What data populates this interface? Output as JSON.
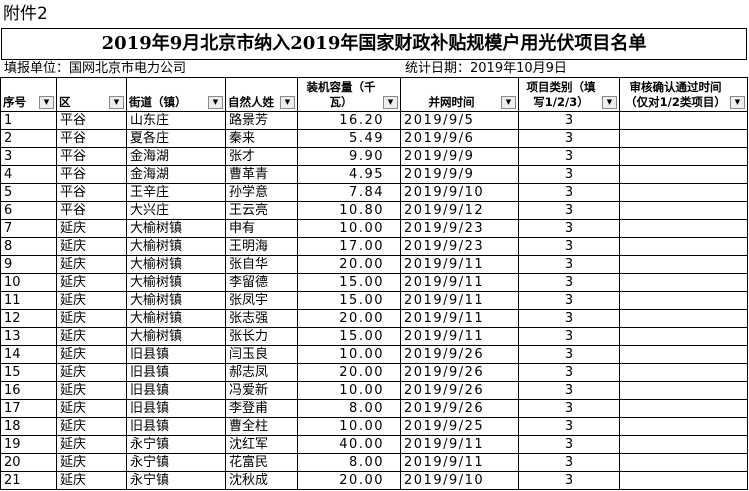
{
  "header": {
    "attachment": "附件2",
    "title": "2019年9月北京市纳入2019年国家财政补贴规模户用光伏项目名单",
    "unit": "填报单位：国网北京市电力公司",
    "date": "统计日期：2019年10月9日"
  },
  "table": {
    "columns": [
      "序号",
      "区",
      "街道（镇）",
      "自然人姓",
      "装机容量（千瓦）",
      "并网时间",
      "项目类别（填写1/2/3）",
      "审核确认通过时间（仅对1/2类项目）"
    ],
    "rows": [
      [
        1,
        "平谷",
        "山东庄",
        "路景芳",
        "16.20",
        "2019/9/5",
        3
      ],
      [
        2,
        "平谷",
        "夏各庄",
        "秦来",
        "5.49",
        "2019/9/6",
        3
      ],
      [
        3,
        "平谷",
        "金海湖",
        "张才",
        "9.90",
        "2019/9/9",
        3
      ],
      [
        4,
        "平谷",
        "金海湖",
        "曹革青",
        "4.95",
        "2019/9/9",
        3
      ],
      [
        5,
        "平谷",
        "王辛庄",
        "孙学意",
        "7.84",
        "2019/9/10",
        3
      ],
      [
        6,
        "平谷",
        "大兴庄",
        "王云亮",
        "10.80",
        "2019/9/12",
        3
      ],
      [
        7,
        "延庆",
        "大榆树镇",
        "申有",
        "10.00",
        "2019/9/23",
        3
      ],
      [
        8,
        "延庆",
        "大榆树镇",
        "王明海",
        "17.00",
        "2019/9/23",
        3
      ],
      [
        9,
        "延庆",
        "大榆树镇",
        "张自华",
        "20.00",
        "2019/9/11",
        3
      ],
      [
        10,
        "延庆",
        "大榆树镇",
        "李留德",
        "15.00",
        "2019/9/11",
        3
      ],
      [
        11,
        "延庆",
        "大榆树镇",
        "张凤宇",
        "15.00",
        "2019/9/11",
        3
      ],
      [
        12,
        "延庆",
        "大榆树镇",
        "张志强",
        "20.00",
        "2019/9/11",
        3
      ],
      [
        13,
        "延庆",
        "大榆树镇",
        "张长力",
        "15.00",
        "2019/9/11",
        3
      ],
      [
        14,
        "延庆",
        "旧县镇",
        "闫玉良",
        "10.00",
        "2019/9/26",
        3
      ],
      [
        15,
        "延庆",
        "旧县镇",
        "郝志凤",
        "20.00",
        "2019/9/26",
        3
      ],
      [
        16,
        "延庆",
        "旧县镇",
        "冯爱新",
        "10.00",
        "2019/9/26",
        3
      ],
      [
        17,
        "延庆",
        "旧县镇",
        "李登甫",
        "8.00",
        "2019/9/26",
        3
      ],
      [
        18,
        "延庆",
        "旧县镇",
        "曹全柱",
        "10.00",
        "2019/9/25",
        3
      ],
      [
        19,
        "延庆",
        "永宁镇",
        "沈红军",
        "40.00",
        "2019/9/11",
        3
      ],
      [
        20,
        "延庆",
        "永宁镇",
        "花富民",
        "8.00",
        "2019/9/11",
        3
      ],
      [
        21,
        "延庆",
        "永宁镇",
        "沈秋成",
        "20.00",
        "2019/9/10",
        3
      ]
    ]
  }
}
